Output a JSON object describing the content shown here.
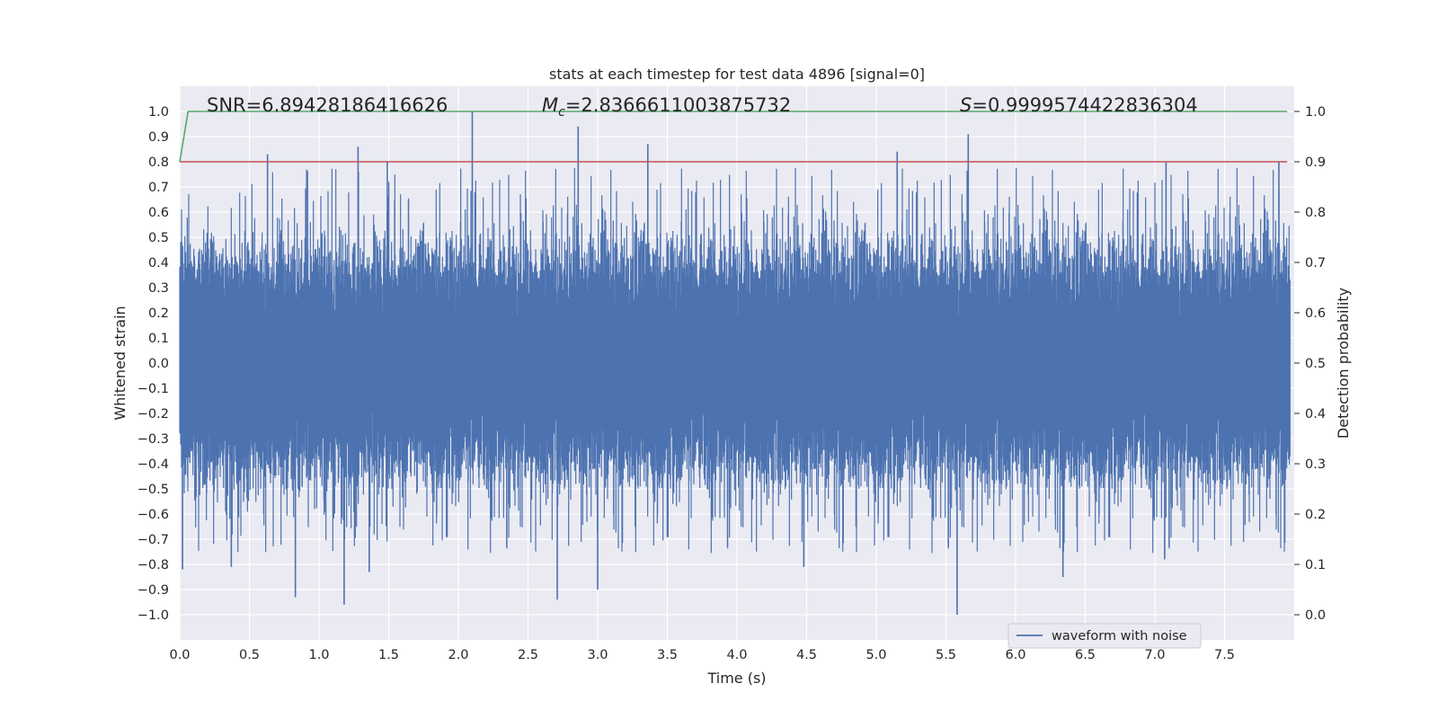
{
  "chart_data": {
    "type": "line",
    "title": "stats at each timestep for test data 4896 [signal=0]",
    "xlabel": "Time (s)",
    "ylabel": "Whitened strain",
    "y2label": "Detection probability",
    "xlim": [
      0.0,
      8.0
    ],
    "ylim": [
      -1.1,
      1.1
    ],
    "y2lim": [
      -0.05,
      1.05
    ],
    "xticks": [
      0.0,
      0.5,
      1.0,
      1.5,
      2.0,
      2.5,
      3.0,
      3.5,
      4.0,
      4.5,
      5.0,
      5.5,
      6.0,
      6.5,
      7.0,
      7.5
    ],
    "xtick_labels": [
      "0.0",
      "0.5",
      "1.0",
      "1.5",
      "2.0",
      "2.5",
      "3.0",
      "3.5",
      "4.0",
      "4.5",
      "5.0",
      "5.5",
      "6.0",
      "6.5",
      "7.0",
      "7.5"
    ],
    "yticks": [
      -1.0,
      -0.9,
      -0.8,
      -0.7,
      -0.6,
      -0.5,
      -0.4,
      -0.3,
      -0.2,
      -0.1,
      0.0,
      0.1,
      0.2,
      0.3,
      0.4,
      0.5,
      0.6,
      0.7,
      0.8,
      0.9,
      1.0
    ],
    "ytick_labels": [
      "−1.0",
      "−0.9",
      "−0.8",
      "−0.7",
      "−0.6",
      "−0.5",
      "−0.4",
      "−0.3",
      "−0.2",
      "−0.1",
      "0.0",
      "0.1",
      "0.2",
      "0.3",
      "0.4",
      "0.5",
      "0.6",
      "0.7",
      "0.8",
      "0.9",
      "1.0"
    ],
    "y2ticks": [
      0.0,
      0.1,
      0.2,
      0.3,
      0.4,
      0.5,
      0.6,
      0.7,
      0.8,
      0.9,
      1.0
    ],
    "y2tick_labels": [
      "0.0",
      "0.1",
      "0.2",
      "0.3",
      "0.4",
      "0.5",
      "0.6",
      "0.7",
      "0.8",
      "0.9",
      "1.0"
    ],
    "grid": true,
    "legend": {
      "entries": [
        "waveform with noise"
      ],
      "placement": "lower-right"
    },
    "annotations": {
      "snr": "SNR=6.89428186416626",
      "mc_symbol": "M",
      "mc_subscript": "c",
      "mc_value": "=2.8366611003875732",
      "s_symbol": "S",
      "s_value": "=0.9999574422836304"
    },
    "series": [
      {
        "name": "waveform with noise",
        "axis": "left",
        "color": "#4c72b0",
        "sampling": "dense noise sampled at 2048 Hz, envelope approx. ±0.4 with spikes",
        "peaks": [
          {
            "x": 0.02,
            "y": -0.82
          },
          {
            "x": 0.37,
            "y": -0.81
          },
          {
            "x": 0.63,
            "y": 0.83
          },
          {
            "x": 0.83,
            "y": -0.93
          },
          {
            "x": 1.18,
            "y": -0.96
          },
          {
            "x": 1.28,
            "y": 0.86
          },
          {
            "x": 1.36,
            "y": -0.83
          },
          {
            "x": 1.49,
            "y": 0.8
          },
          {
            "x": 2.1,
            "y": 1.0
          },
          {
            "x": 2.71,
            "y": -0.94
          },
          {
            "x": 2.86,
            "y": 0.94
          },
          {
            "x": 3.0,
            "y": -0.9
          },
          {
            "x": 3.36,
            "y": 0.87
          },
          {
            "x": 4.48,
            "y": -0.81
          },
          {
            "x": 5.15,
            "y": 0.84
          },
          {
            "x": 5.58,
            "y": -1.0
          },
          {
            "x": 5.66,
            "y": 0.91
          },
          {
            "x": 6.34,
            "y": -0.85
          },
          {
            "x": 7.08,
            "y": 0.8
          },
          {
            "x": 7.07,
            "y": -0.78
          },
          {
            "x": 7.89,
            "y": 0.8
          }
        ]
      },
      {
        "name": "detection probability",
        "axis": "right",
        "color": "#55a868",
        "x": [
          0.0,
          0.06,
          7.95
        ],
        "y": [
          0.9,
          1.0,
          1.0
        ]
      },
      {
        "name": "threshold",
        "axis": "right",
        "color": "#c44e52",
        "x": [
          0.0,
          7.95
        ],
        "y": [
          0.9,
          0.9
        ]
      }
    ]
  }
}
